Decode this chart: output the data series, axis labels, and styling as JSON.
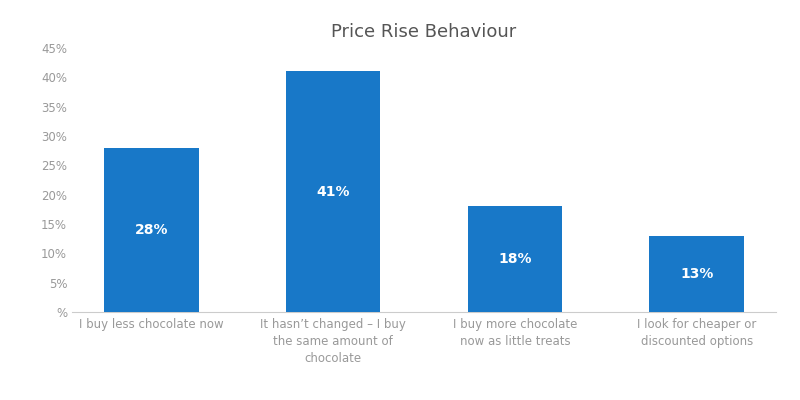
{
  "title": "Price Rise Behaviour",
  "categories": [
    "I buy less chocolate now",
    "It hasn’t changed – I buy\nthe same amount of\nchocolate",
    "I buy more chocolate\nnow as little treats",
    "I look for cheaper or\ndiscounted options"
  ],
  "values": [
    28,
    41,
    18,
    13
  ],
  "labels": [
    "28%",
    "41%",
    "18%",
    "13%"
  ],
  "bar_color": "#1878C8",
  "background_color": "#ffffff",
  "ylim": [
    0,
    45
  ],
  "yticks": [
    0,
    5,
    10,
    15,
    20,
    25,
    30,
    35,
    40,
    45
  ],
  "title_fontsize": 13,
  "tick_fontsize": 8.5,
  "bar_label_fontsize": 10,
  "bar_width": 0.52,
  "label_color": "#999999",
  "spine_color": "#cccccc"
}
